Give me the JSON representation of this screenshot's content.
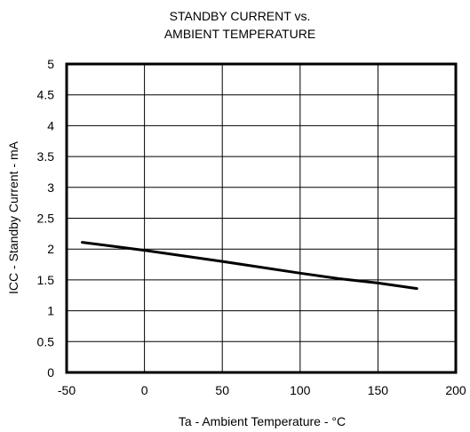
{
  "chart_data": {
    "type": "line",
    "title_lines": [
      "STANDBY CURRENT vs.",
      "AMBIENT TEMPERATURE"
    ],
    "xlabel": "Ta - Ambient Temperature - °C",
    "ylabel": "ICC - Standby Current - mA",
    "xlim": [
      -50,
      200
    ],
    "ylim": [
      0,
      5
    ],
    "x_ticks": [
      -50,
      0,
      50,
      100,
      150,
      200
    ],
    "x_tick_labels": [
      "-50",
      "0",
      "50",
      "100",
      "150",
      "200"
    ],
    "y_ticks": [
      0,
      0.5,
      1,
      1.5,
      2,
      2.5,
      3,
      3.5,
      4,
      4.5,
      5
    ],
    "y_tick_labels": [
      "0",
      "0.5",
      "1",
      "1.5",
      "2",
      "2.5",
      "3",
      "3.5",
      "4",
      "4.5",
      "5"
    ],
    "grid": true,
    "series": [
      {
        "x": [
          -40,
          0,
          50,
          100,
          125,
          150,
          175
        ],
        "y": [
          2.11,
          1.98,
          1.8,
          1.61,
          1.52,
          1.45,
          1.36
        ]
      }
    ],
    "line_color": "#000000"
  }
}
